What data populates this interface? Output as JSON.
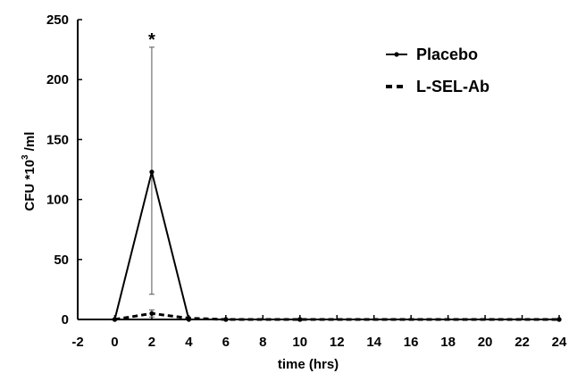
{
  "chart_data": {
    "type": "line",
    "xlabel": "time (hrs)",
    "ylabel_prefix": "CFU  *10",
    "ylabel_sup": "3",
    "ylabel_suffix": " /ml",
    "xlim": [
      -2,
      24
    ],
    "ylim": [
      0,
      250
    ],
    "x_ticks": [
      -2,
      0,
      2,
      4,
      6,
      8,
      10,
      12,
      14,
      16,
      18,
      20,
      22,
      24
    ],
    "y_ticks": [
      0,
      50,
      100,
      150,
      200,
      250
    ],
    "grid": false,
    "legend_position": "top-right",
    "series": [
      {
        "name": "Placebo",
        "style": "solid",
        "color": "#000000",
        "x": [
          0,
          2,
          4,
          6,
          10,
          24
        ],
        "y": [
          0,
          123,
          0,
          0,
          0,
          0
        ],
        "error_upper": [
          null,
          227,
          null,
          null,
          null,
          null
        ],
        "error_lower": [
          null,
          21,
          null,
          null,
          null,
          null
        ]
      },
      {
        "name": "L-SEL-Ab",
        "style": "dashed",
        "color": "#000000",
        "x": [
          0,
          2,
          4,
          6,
          10,
          24
        ],
        "y": [
          0,
          5,
          1,
          0,
          0,
          0
        ],
        "error_upper": [
          null,
          8,
          null,
          null,
          null,
          null
        ],
        "error_lower": [
          null,
          2,
          null,
          null,
          null,
          null
        ]
      }
    ],
    "annotations": [
      {
        "text": "*",
        "x": 2,
        "y": 227
      }
    ]
  }
}
